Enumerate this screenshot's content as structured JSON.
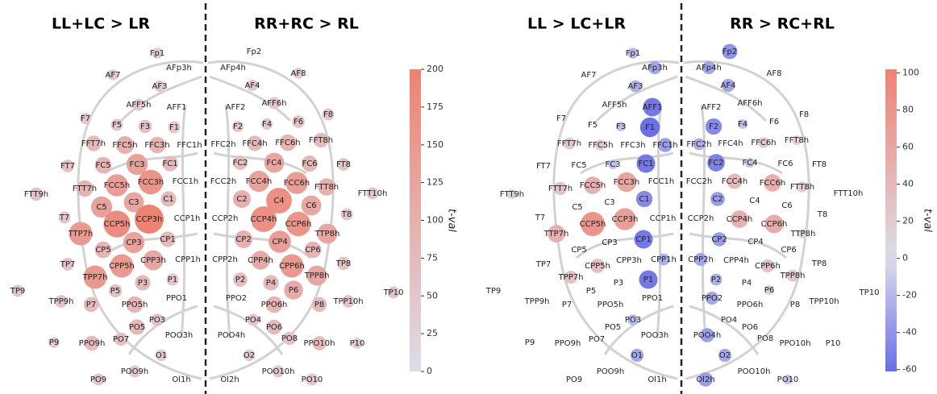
{
  "chart_data": [
    {
      "type": "topomap",
      "titles": [
        "LL+LC  >  LR",
        "RR+RC  >  RL"
      ],
      "colorbar_label": "t-val",
      "clim": [
        0,
        200
      ],
      "cticks": [
        0,
        25,
        50,
        75,
        100,
        125,
        150,
        175,
        200
      ],
      "categories": [
        "Fp1",
        "AFp3h",
        "AF7",
        "AF3",
        "AFF5h",
        "AFF1",
        "F7",
        "F5",
        "F3",
        "F1",
        "FFT7h",
        "FFC5h",
        "FFC3h",
        "FFC1h",
        "FT7",
        "FC5",
        "FC3",
        "FC1",
        "FTT7h",
        "FCC5h",
        "FCC3h",
        "FCC1h",
        "FTT9h",
        "C5",
        "C3",
        "C1",
        "T7",
        "CCP5h",
        "CCP3h",
        "CCP1h",
        "TTP7h",
        "CP3",
        "CP1",
        "CP5",
        "TP7",
        "CPP5h",
        "CPP3h",
        "CPP1h",
        "TPP7h",
        "P5",
        "P3",
        "P1",
        "TP9",
        "TPP9h",
        "P7",
        "PPO5h",
        "PPO1",
        "PO3",
        "PO5",
        "POO3h",
        "P9",
        "PPO9h",
        "PO7",
        "O1",
        "POO9h",
        "PO9",
        "Ol1h",
        "Fp2",
        "AFp4h",
        "AF8",
        "AF4",
        "AFF6h",
        "AFF2",
        "F8",
        "F6",
        "F4",
        "F2",
        "FFT8h",
        "FFC6h",
        "FFC4h",
        "FFC2h",
        "FT8",
        "FC6",
        "FC4",
        "FC2",
        "FTT8h",
        "FCC6h",
        "FCC4h",
        "FCC2h",
        "FTT10h",
        "C6",
        "C4",
        "C2",
        "T8",
        "CCP6h",
        "CCP4h",
        "CCP2h",
        "TTP8h",
        "CP4",
        "CP2",
        "CP6",
        "TP8",
        "CPP6h",
        "CPP4h",
        "CPP2h",
        "TPP8h",
        "P6",
        "P4",
        "P2",
        "TP10",
        "TPP10h",
        "P8",
        "PPO6h",
        "PPO2",
        "PO4",
        "PO6",
        "POO4h",
        "P10",
        "PPO10h",
        "PO8",
        "O2",
        "POO10h",
        "PO10",
        "Ol2h"
      ],
      "values": [
        40,
        null,
        40,
        45,
        50,
        null,
        45,
        50,
        60,
        50,
        80,
        100,
        90,
        null,
        55,
        90,
        130,
        80,
        90,
        140,
        160,
        null,
        60,
        130,
        120,
        80,
        50,
        180,
        200,
        null,
        150,
        130,
        80,
        90,
        55,
        150,
        120,
        null,
        150,
        60,
        80,
        50,
        50,
        55,
        75,
        90,
        null,
        55,
        80,
        null,
        40,
        75,
        60,
        45,
        50,
        50,
        null,
        null,
        null,
        40,
        45,
        50,
        null,
        50,
        55,
        45,
        45,
        75,
        90,
        80,
        null,
        55,
        85,
        120,
        70,
        95,
        140,
        130,
        null,
        50,
        120,
        170,
        100,
        50,
        160,
        170,
        null,
        120,
        140,
        100,
        90,
        60,
        150,
        110,
        null,
        120,
        110,
        80,
        70,
        50,
        55,
        75,
        90,
        null,
        50,
        75,
        null,
        40,
        70,
        60,
        45,
        50,
        50,
        null
      ]
    },
    {
      "type": "topomap",
      "titles": [
        "LL  >  LC+LR",
        "RR  >  RC+RL"
      ],
      "colorbar_label": "t-val",
      "clim": [
        -61,
        102
      ],
      "cticks": [
        -60,
        -40,
        -20,
        0,
        20,
        40,
        60,
        80,
        100
      ],
      "categories": [
        "Fp1",
        "AFp3h",
        "AF7",
        "AF3",
        "AFF5h",
        "AFF1",
        "F7",
        "F5",
        "F3",
        "F1",
        "FFT7h",
        "FFC5h",
        "FFC3h",
        "FFC1h",
        "FT7",
        "FC5",
        "FC3",
        "FC1",
        "FTT7h",
        "FCC5h",
        "FCC3h",
        "FCC1h",
        "FTT9h",
        "C5",
        "C3",
        "C1",
        "T7",
        "CCP5h",
        "CCP3h",
        "CCP1h",
        "TTP7h",
        "CP3",
        "CP1",
        "CP5",
        "TP7",
        "CPP5h",
        "CPP3h",
        "CPP1h",
        "TPP7h",
        "P5",
        "P3",
        "P1",
        "TP9",
        "TPP9h",
        "P7",
        "PPO5h",
        "PPO1",
        "PO3",
        "PO5",
        "POO3h",
        "P9",
        "PPO9h",
        "PO7",
        "O1",
        "POO9h",
        "PO9",
        "Ol1h",
        "Fp2",
        "AFp4h",
        "AF8",
        "AF4",
        "AFF6h",
        "AFF2",
        "F8",
        "F6",
        "F4",
        "F2",
        "FFT8h",
        "FFC6h",
        "FFC4h",
        "FFC2h",
        "FT8",
        "FC6",
        "FC4",
        "FC2",
        "FTT8h",
        "FCC6h",
        "FCC4h",
        "FCC2h",
        "FTT10h",
        "C6",
        "C4",
        "C2",
        "T8",
        "CCP6h",
        "CCP4h",
        "CCP2h",
        "TTP8h",
        "CP4",
        "CP2",
        "CP6",
        "TP8",
        "CPP6h",
        "CPP4h",
        "CPP2h",
        "TPP8h",
        "P6",
        "P4",
        "P2",
        "TP10",
        "TPP10h",
        "P8",
        "PPO6h",
        "PPO2",
        "PO4",
        "PO6",
        "POO4h",
        "P10",
        "PPO10h",
        "PO8",
        "O2",
        "POO10h",
        "PO10",
        "Ol2h"
      ],
      "values": [
        -20,
        -30,
        null,
        -25,
        null,
        -55,
        null,
        null,
        -15,
        -60,
        25,
        20,
        null,
        -35,
        null,
        null,
        -15,
        -55,
        30,
        50,
        60,
        null,
        15,
        null,
        null,
        -45,
        null,
        80,
        70,
        null,
        50,
        null,
        -55,
        null,
        null,
        35,
        null,
        -25,
        30,
        null,
        null,
        -55,
        null,
        null,
        null,
        null,
        null,
        -20,
        null,
        null,
        null,
        null,
        null,
        -30,
        null,
        null,
        null,
        -40,
        -30,
        null,
        -30,
        null,
        null,
        null,
        null,
        -15,
        -45,
        15,
        20,
        null,
        -25,
        null,
        null,
        -15,
        -50,
        20,
        50,
        40,
        null,
        null,
        null,
        null,
        -35,
        null,
        55,
        50,
        null,
        15,
        null,
        -35,
        null,
        null,
        30,
        null,
        -30,
        25,
        15,
        null,
        -25,
        null,
        null,
        null,
        null,
        -30,
        null,
        null,
        -35,
        null,
        null,
        null,
        -30,
        null,
        -15,
        -35
      ]
    }
  ]
}
